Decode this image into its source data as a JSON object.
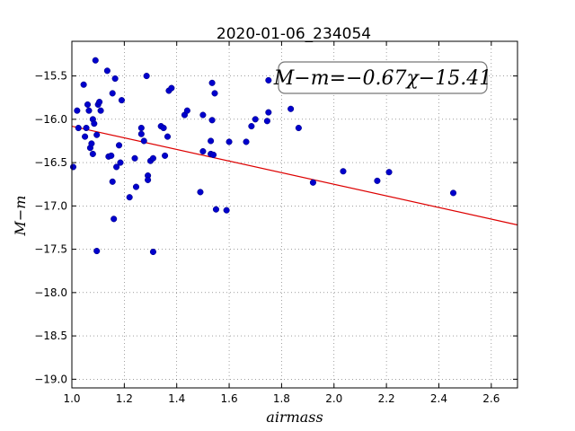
{
  "chart_data": {
    "type": "scatter",
    "title": "2020-01-06_234054",
    "xlabel": "airmass",
    "ylabel": "M−m",
    "xlim": [
      1.0,
      2.7
    ],
    "ylim": [
      -19.1,
      -15.1
    ],
    "x_ticks": [
      "1.0",
      "1.2",
      "1.4",
      "1.6",
      "1.8",
      "2.0",
      "2.2",
      "2.4",
      "2.6"
    ],
    "y_ticks": [
      "−15.5",
      "−16.0",
      "−16.5",
      "−17.0",
      "−17.5",
      "−18.0",
      "−18.5",
      "−19.0"
    ],
    "grid": true,
    "annotation": "M−m=−0.67χ−15.41",
    "fit": {
      "slope": -0.67,
      "intercept": -15.41,
      "color": "#dd0000"
    },
    "point_color": "#0000cc",
    "series": [
      {
        "x": [
          1.005,
          1.02,
          1.025,
          1.045,
          1.05,
          1.055,
          1.06,
          1.065,
          1.07,
          1.075,
          1.08,
          1.08,
          1.085,
          1.09,
          1.095,
          1.095,
          1.1,
          1.105,
          1.11,
          1.135,
          1.14,
          1.15,
          1.155,
          1.155,
          1.16,
          1.165,
          1.17,
          1.18,
          1.185,
          1.19,
          1.22,
          1.24,
          1.245,
          1.265,
          1.265,
          1.275,
          1.285,
          1.29,
          1.29,
          1.3,
          1.31,
          1.31,
          1.34,
          1.35,
          1.355,
          1.365,
          1.37,
          1.38,
          1.43,
          1.44,
          1.49,
          1.5,
          1.5,
          1.53,
          1.53,
          1.535,
          1.535,
          1.54,
          1.545,
          1.55,
          1.59,
          1.6,
          1.665,
          1.685,
          1.7,
          1.745,
          1.75,
          1.75,
          1.835,
          1.865,
          1.92,
          2.035,
          2.165,
          2.21,
          2.455
        ],
        "y": [
          -16.55,
          -15.9,
          -16.1,
          -15.6,
          -16.2,
          -16.1,
          -15.83,
          -15.9,
          -16.33,
          -16.28,
          -16.4,
          -16.0,
          -16.05,
          -15.32,
          -16.18,
          -17.52,
          -15.83,
          -15.8,
          -15.9,
          -15.44,
          -16.43,
          -16.42,
          -16.72,
          -15.7,
          -17.15,
          -15.53,
          -16.55,
          -16.3,
          -16.5,
          -15.78,
          -16.9,
          -16.45,
          -16.78,
          -16.1,
          -16.17,
          -16.25,
          -15.5,
          -16.65,
          -16.7,
          -16.48,
          -16.45,
          -17.53,
          -16.08,
          -16.1,
          -16.42,
          -16.2,
          -15.67,
          -15.64,
          -15.95,
          -15.9,
          -16.84,
          -16.37,
          -15.95,
          -16.25,
          -16.4,
          -15.58,
          -16.01,
          -16.41,
          -15.7,
          -17.04,
          -17.05,
          -16.26,
          -16.26,
          -16.08,
          -16.0,
          -16.02,
          -15.55,
          -15.92,
          -15.88,
          -16.1,
          -16.73,
          -16.6,
          -16.71,
          -16.61,
          -16.85
        ]
      }
    ]
  }
}
